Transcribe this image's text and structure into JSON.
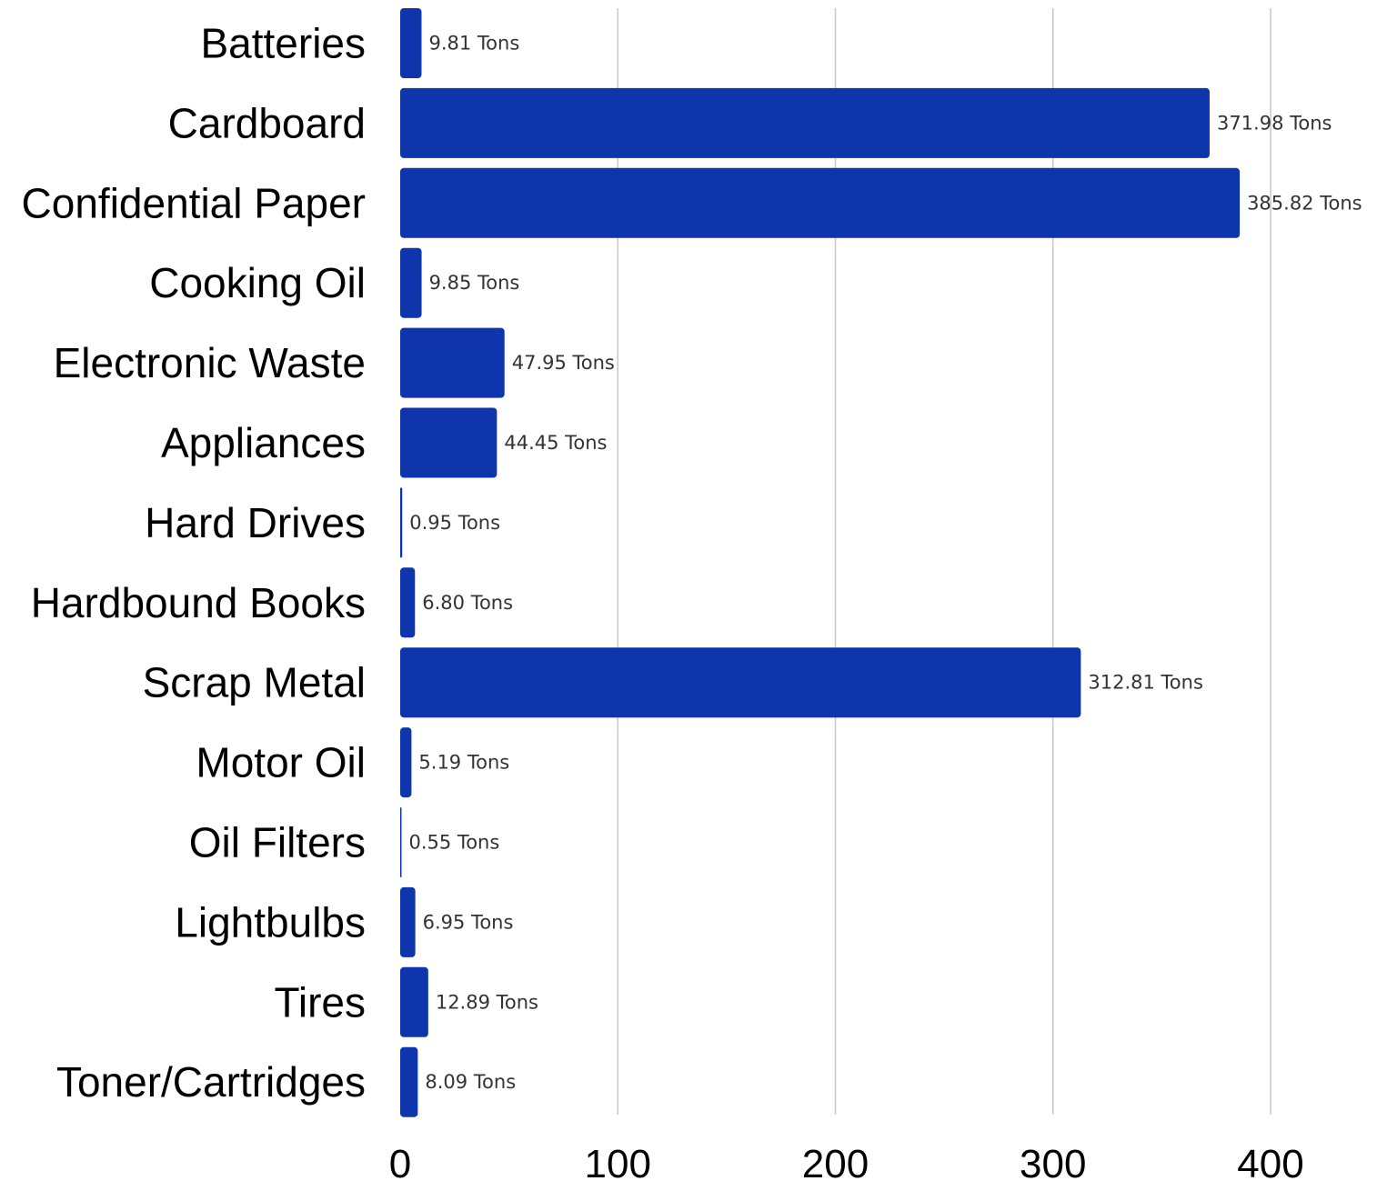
{
  "chart_data": {
    "type": "bar",
    "orientation": "horizontal",
    "categories": [
      "Batteries",
      "Cardboard",
      "Confidential Paper",
      "Cooking Oil",
      "Electronic Waste",
      "Appliances",
      "Hard Drives",
      "Hardbound Books",
      "Scrap Metal",
      "Motor Oil",
      "Oil Filters",
      "Lightbulbs",
      "Tires",
      "Toner/Cartridges"
    ],
    "values": [
      9.81,
      371.98,
      385.82,
      9.85,
      47.95,
      44.45,
      0.95,
      6.8,
      312.81,
      5.19,
      0.55,
      6.95,
      12.89,
      8.09
    ],
    "value_labels": [
      "9.81 Tons",
      "371.98 Tons",
      "385.82 Tons",
      "9.85 Tons",
      "47.95 Tons",
      "44.45 Tons",
      "0.95 Tons",
      "6.80 Tons",
      "312.81 Tons",
      "5.19 Tons",
      "0.55 Tons",
      "6.95 Tons",
      "12.89 Tons",
      "8.09 Tons"
    ],
    "x_ticks": [
      "0",
      "100",
      "200",
      "300",
      "400"
    ],
    "x_tick_values": [
      0,
      100,
      200,
      300,
      400
    ],
    "xlim": [
      0,
      400
    ],
    "title": "",
    "xlabel": "",
    "ylabel": "",
    "grid": "vertical",
    "legend": "none",
    "bar_color": "#0F35AD",
    "grid_color": "#C8C8C8"
  }
}
